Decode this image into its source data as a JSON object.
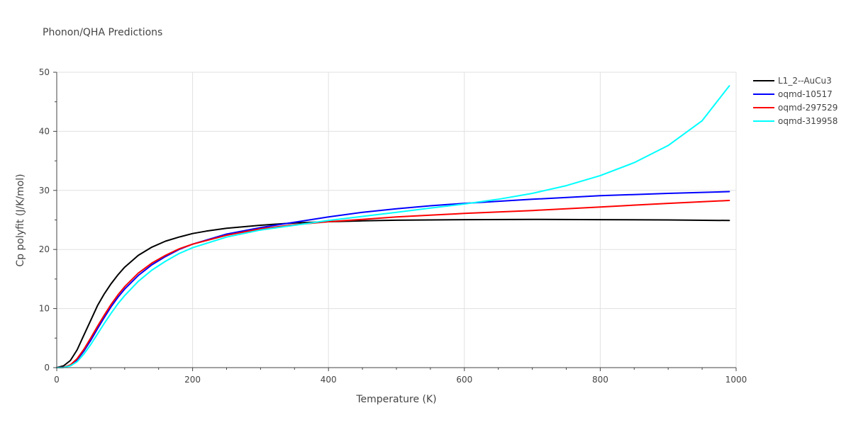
{
  "chart_data": {
    "type": "line",
    "title": "Phonon/QHA Predictions",
    "xlabel": "Temperature (K)",
    "ylabel": "Cp polyfit (J/K/mol)",
    "xlim": [
      0,
      1000
    ],
    "ylim": [
      0,
      50
    ],
    "xticks": [
      0,
      200,
      400,
      600,
      800,
      1000
    ],
    "yticks": [
      0,
      10,
      20,
      30,
      40,
      50
    ],
    "grid": true,
    "legend_position": "top-right outside",
    "series": [
      {
        "name": "L1_2--AuCu3",
        "color": "#000000",
        "x": [
          0,
          10,
          20,
          30,
          40,
          50,
          60,
          70,
          80,
          90,
          100,
          120,
          140,
          160,
          180,
          200,
          220,
          250,
          300,
          350,
          400,
          450,
          500,
          550,
          600,
          700,
          800,
          900,
          990
        ],
        "y": [
          0,
          0.3,
          1.2,
          3.0,
          5.5,
          8.0,
          10.5,
          12.5,
          14.2,
          15.7,
          17.0,
          19.0,
          20.4,
          21.4,
          22.1,
          22.7,
          23.1,
          23.6,
          24.1,
          24.5,
          24.7,
          24.85,
          24.95,
          25.0,
          25.05,
          25.1,
          25.05,
          25.0,
          24.9
        ]
      },
      {
        "name": "oqmd-10517",
        "color": "#0000ff",
        "x": [
          0,
          10,
          20,
          30,
          40,
          50,
          60,
          70,
          80,
          90,
          100,
          120,
          140,
          160,
          180,
          200,
          250,
          300,
          350,
          400,
          450,
          500,
          550,
          600,
          700,
          800,
          900,
          990
        ],
        "y": [
          0,
          0.05,
          0.4,
          1.3,
          2.8,
          4.6,
          6.6,
          8.5,
          10.3,
          11.9,
          13.3,
          15.6,
          17.4,
          18.8,
          20.0,
          20.9,
          22.6,
          23.7,
          24.6,
          25.5,
          26.3,
          26.9,
          27.4,
          27.8,
          28.5,
          29.1,
          29.5,
          29.8
        ]
      },
      {
        "name": "oqmd-297529",
        "color": "#ff0000",
        "x": [
          0,
          10,
          20,
          30,
          40,
          50,
          60,
          70,
          80,
          90,
          100,
          120,
          140,
          160,
          180,
          200,
          250,
          300,
          350,
          400,
          450,
          500,
          550,
          600,
          700,
          800,
          900,
          990
        ],
        "y": [
          0,
          0.05,
          0.45,
          1.5,
          3.1,
          5.0,
          7.0,
          8.9,
          10.7,
          12.3,
          13.7,
          16.0,
          17.7,
          19.0,
          20.1,
          20.9,
          22.4,
          23.5,
          24.2,
          24.7,
          25.1,
          25.5,
          25.8,
          26.1,
          26.6,
          27.2,
          27.8,
          28.3
        ]
      },
      {
        "name": "oqmd-319958",
        "color": "#00ffff",
        "x": [
          0,
          10,
          20,
          30,
          40,
          50,
          60,
          70,
          80,
          90,
          100,
          120,
          140,
          160,
          180,
          200,
          250,
          300,
          350,
          400,
          450,
          500,
          550,
          600,
          650,
          700,
          750,
          800,
          850,
          900,
          950,
          990
        ],
        "y": [
          0,
          0.03,
          0.3,
          1.0,
          2.3,
          3.9,
          5.7,
          7.5,
          9.2,
          10.8,
          12.2,
          14.6,
          16.5,
          18.0,
          19.3,
          20.3,
          22.1,
          23.3,
          24.1,
          24.9,
          25.6,
          26.3,
          27.0,
          27.7,
          28.5,
          29.5,
          30.8,
          32.5,
          34.7,
          37.6,
          41.8,
          47.7
        ]
      }
    ]
  }
}
